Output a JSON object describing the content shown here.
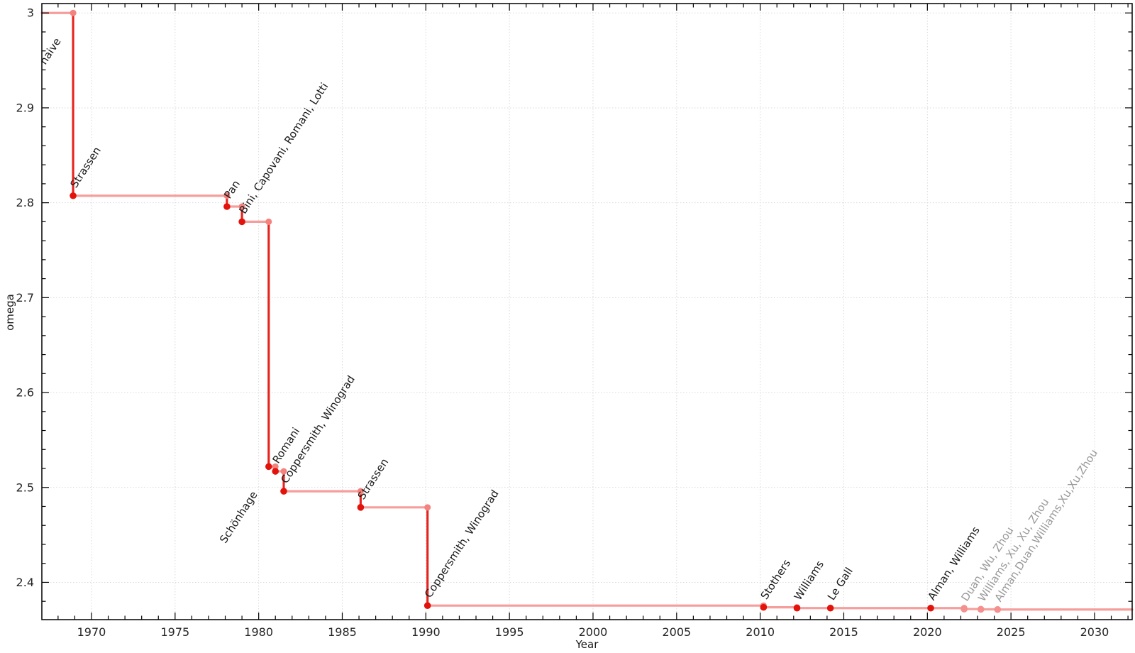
{
  "chart_data": {
    "type": "line",
    "variant": "step",
    "title": "",
    "xlabel": "Year",
    "ylabel": "omega",
    "xlim": [
      1967.03,
      2032.25
    ],
    "ylim": [
      2.3607,
      3.0099
    ],
    "x_major_ticks": [
      1970,
      1975,
      1980,
      1985,
      1990,
      1995,
      2000,
      2005,
      2010,
      2015,
      2020,
      2025,
      2030
    ],
    "x_minor_tick_step": 1,
    "y_major_ticks": [
      2.4,
      2.5,
      2.6,
      2.7,
      2.8,
      2.9,
      3
    ],
    "y_minor_tick_step": 0.02,
    "grid": {
      "style": "dotted",
      "color": "#d9d9d9"
    },
    "legend": "none",
    "start": {
      "label": "naive",
      "year": 1967.03,
      "omega": 3.0
    },
    "events": [
      {
        "year": 1968.9,
        "omega": 2.8074,
        "label": "Strassen",
        "emphasis": "normal"
      },
      {
        "year": 1978.1,
        "omega": 2.796,
        "label": "Pan",
        "emphasis": "normal"
      },
      {
        "year": 1979.0,
        "omega": 2.78,
        "label": "Bini, Capovani, Romani, Lotti",
        "emphasis": "normal"
      },
      {
        "year": 1980.6,
        "omega": 2.522,
        "label": "Schönhage",
        "emphasis": "normal"
      },
      {
        "year": 1981.0,
        "omega": 2.517,
        "label": "Romani",
        "emphasis": "normal"
      },
      {
        "year": 1981.5,
        "omega": 2.496,
        "label": "Coppersmith, Winograd",
        "emphasis": "normal"
      },
      {
        "year": 1986.1,
        "omega": 2.479,
        "label": "Strassen",
        "emphasis": "normal"
      },
      {
        "year": 1990.1,
        "omega": 2.3755,
        "label": "Coppersmith, Winograd",
        "emphasis": "normal"
      },
      {
        "year": 2010.2,
        "omega": 2.3737,
        "label": "Stothers",
        "emphasis": "normal"
      },
      {
        "year": 2012.2,
        "omega": 2.3729,
        "label": "Williams",
        "emphasis": "normal"
      },
      {
        "year": 2014.2,
        "omega": 2.3728639,
        "label": "Le Gall",
        "emphasis": "normal"
      },
      {
        "year": 2020.2,
        "omega": 2.3728596,
        "label": "Alman, Williams",
        "emphasis": "normal"
      },
      {
        "year": 2022.2,
        "omega": 2.371866,
        "label": "Duan, Wu, Zhou",
        "emphasis": "muted"
      },
      {
        "year": 2023.2,
        "omega": 2.371552,
        "label": "Williams, Xu, Xu, Zhou",
        "emphasis": "muted"
      },
      {
        "year": 2024.2,
        "omega": 2.371339,
        "label": "Alman,Duan,Williams,Xu,Xu,Zhou",
        "emphasis": "muted"
      }
    ],
    "colors": {
      "step_line": "#f59e9b",
      "drop_line": "#e8221c",
      "event_marker": "#e3120b",
      "corner_marker": "#f4827e",
      "muted_marker": "#f4908d",
      "label_text": "#1a1a1a",
      "muted_label_text": "#999999",
      "tick_text": "#262626",
      "axis": "#000000"
    }
  }
}
